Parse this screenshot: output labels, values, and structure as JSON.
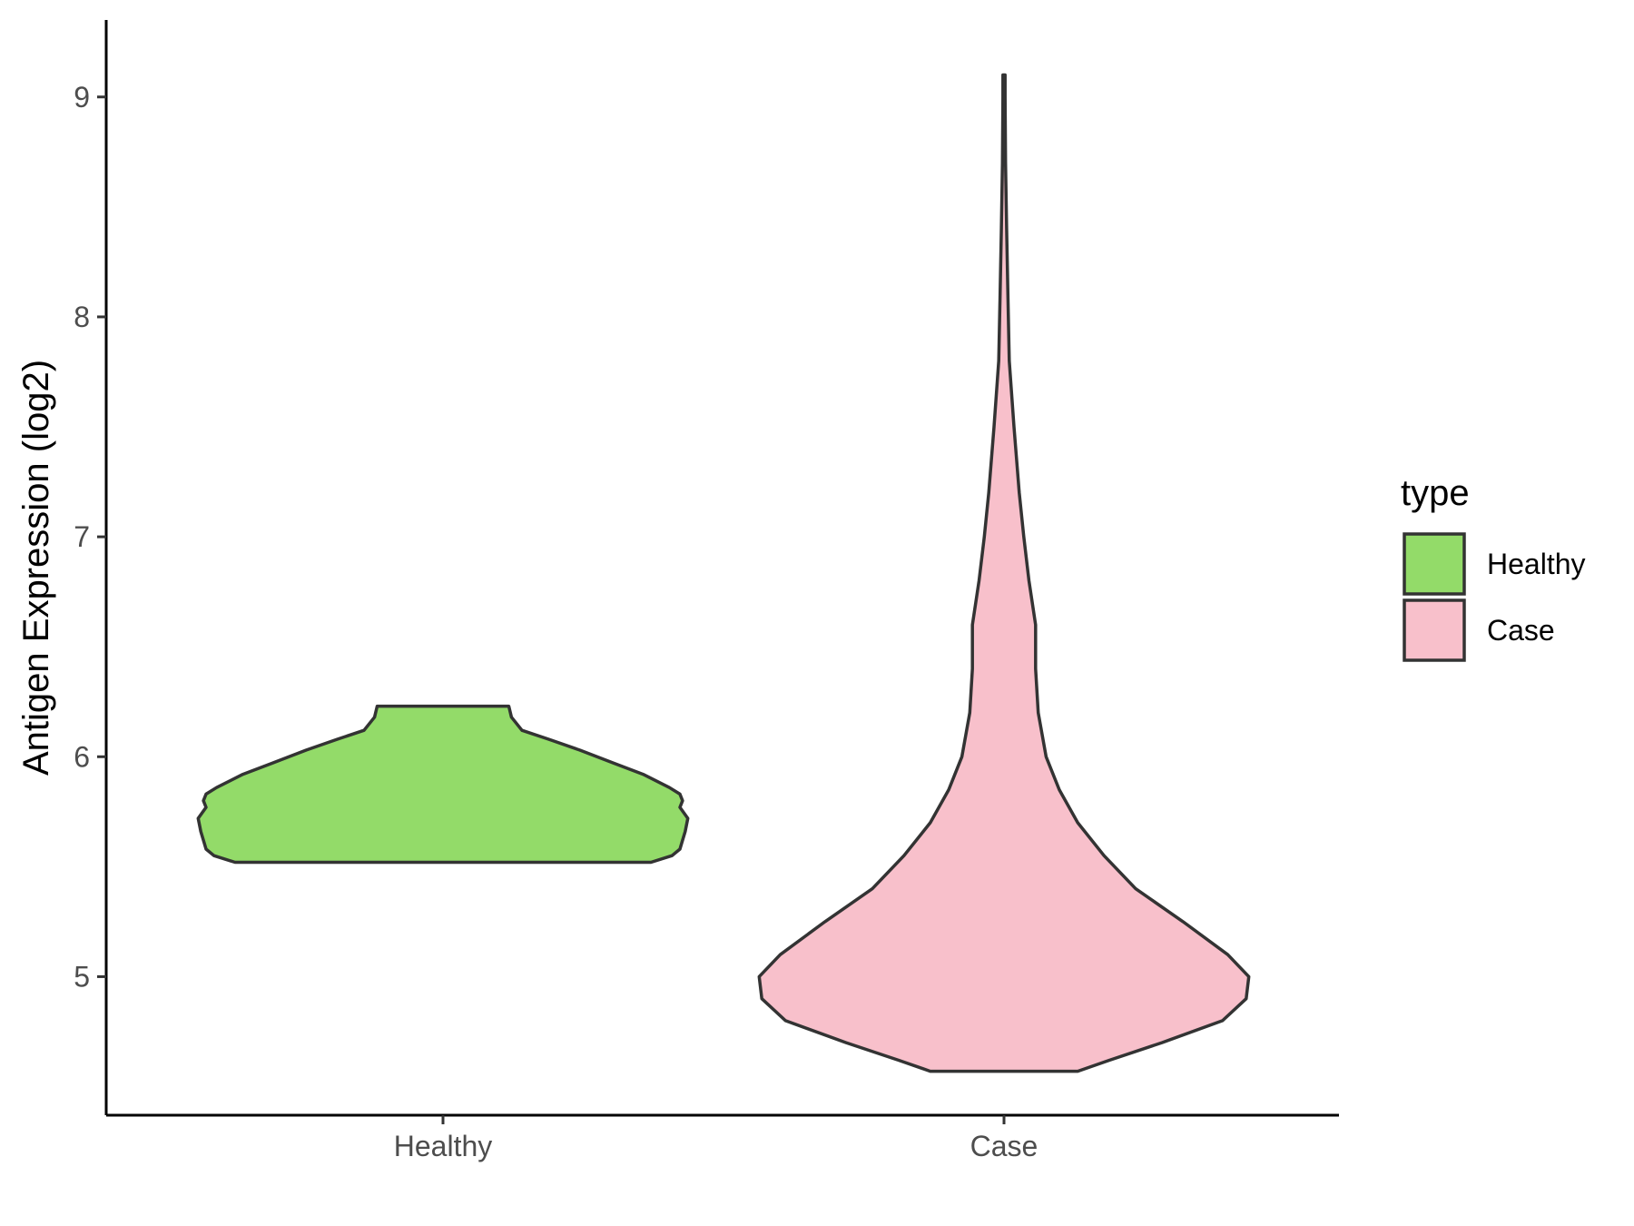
{
  "chart_data": {
    "type": "violin",
    "title": "",
    "xlabel": "",
    "ylabel": "Antigen Expression (log2)",
    "ylim": [
      4.37,
      9.35
    ],
    "yticks": [
      5,
      6,
      7,
      8,
      9
    ],
    "categories": [
      "Healthy",
      "Case"
    ],
    "grid": false,
    "legend": {
      "title": "type",
      "position": "right",
      "entries": [
        {
          "label": "Healthy",
          "color": "#93db69"
        },
        {
          "label": "Case",
          "color": "#f8c0cb"
        }
      ]
    },
    "series": [
      {
        "name": "Healthy",
        "color": "#93db69",
        "min": 5.52,
        "max": 6.23,
        "density_profile": [
          [
            5.52,
            0.79
          ],
          [
            5.55,
            0.87
          ],
          [
            5.58,
            0.9
          ],
          [
            5.62,
            0.91
          ],
          [
            5.66,
            0.92
          ],
          [
            5.72,
            0.93
          ],
          [
            5.77,
            0.9
          ],
          [
            5.8,
            0.91
          ],
          [
            5.83,
            0.9
          ],
          [
            5.86,
            0.86
          ],
          [
            5.92,
            0.76
          ],
          [
            5.97,
            0.65
          ],
          [
            6.03,
            0.52
          ],
          [
            6.08,
            0.4
          ],
          [
            6.12,
            0.3
          ],
          [
            6.18,
            0.26
          ],
          [
            6.23,
            0.25
          ]
        ]
      },
      {
        "name": "Case",
        "color": "#f8c0cb",
        "min": 4.57,
        "max": 9.1,
        "density_profile": [
          [
            4.57,
            0.28
          ],
          [
            4.62,
            0.4
          ],
          [
            4.7,
            0.6
          ],
          [
            4.8,
            0.83
          ],
          [
            4.9,
            0.92
          ],
          [
            5.0,
            0.93
          ],
          [
            5.1,
            0.85
          ],
          [
            5.25,
            0.68
          ],
          [
            5.4,
            0.5
          ],
          [
            5.55,
            0.38
          ],
          [
            5.7,
            0.28
          ],
          [
            5.85,
            0.21
          ],
          [
            6.0,
            0.16
          ],
          [
            6.2,
            0.13
          ],
          [
            6.4,
            0.12
          ],
          [
            6.6,
            0.12
          ],
          [
            6.8,
            0.095
          ],
          [
            7.0,
            0.075
          ],
          [
            7.2,
            0.058
          ],
          [
            7.5,
            0.038
          ],
          [
            7.8,
            0.02
          ],
          [
            8.1,
            0.015
          ],
          [
            8.4,
            0.01
          ],
          [
            8.7,
            0.006
          ],
          [
            9.0,
            0.004
          ],
          [
            9.1,
            0.004
          ]
        ]
      }
    ]
  }
}
